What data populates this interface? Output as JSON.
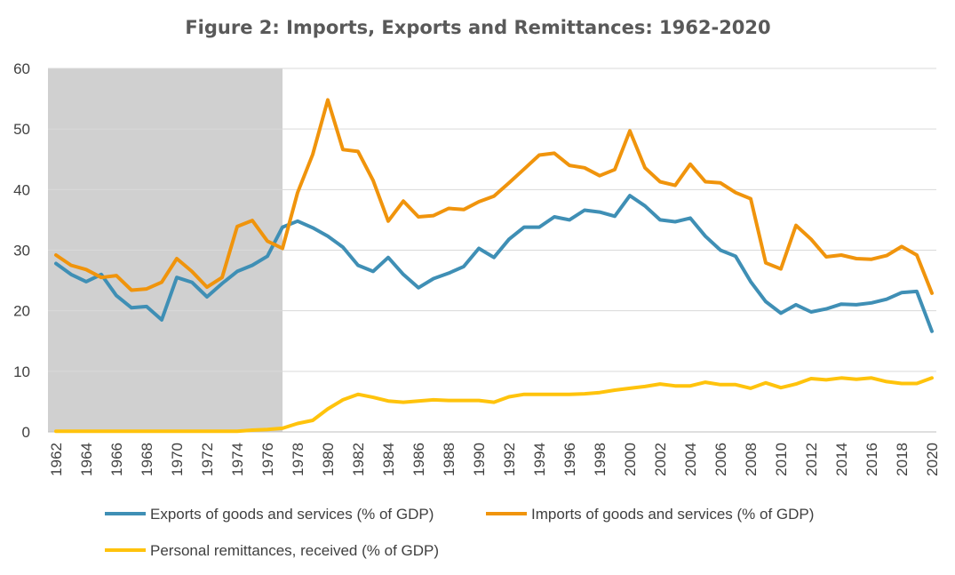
{
  "chart_data": {
    "type": "line",
    "title": "Figure 2: Imports, Exports and Remittances: 1962-2020",
    "xlabel": "",
    "ylabel": "",
    "ylim": [
      0,
      60
    ],
    "yticks": [
      "0",
      "10",
      "20",
      "30",
      "40",
      "50",
      "60"
    ],
    "xlim": [
      1962,
      2020
    ],
    "xticks": [
      "1962",
      "1964",
      "1966",
      "1968",
      "1970",
      "1972",
      "1974",
      "1976",
      "1978",
      "1980",
      "1982",
      "1984",
      "1986",
      "1988",
      "1990",
      "1992",
      "1994",
      "1996",
      "1998",
      "2000",
      "2002",
      "2004",
      "2006",
      "2008",
      "2010",
      "2012",
      "2014",
      "2016",
      "2018",
      "2020"
    ],
    "grid": true,
    "legend_position": "bottom",
    "shaded_region": {
      "from": 1962,
      "to": 1977,
      "color": "#d0d0d0"
    },
    "x": [
      1962,
      1963,
      1964,
      1965,
      1966,
      1967,
      1968,
      1969,
      1970,
      1971,
      1972,
      1973,
      1974,
      1975,
      1976,
      1977,
      1978,
      1979,
      1980,
      1981,
      1982,
      1983,
      1984,
      1985,
      1986,
      1987,
      1988,
      1989,
      1990,
      1991,
      1992,
      1993,
      1994,
      1995,
      1996,
      1997,
      1998,
      1999,
      2000,
      2001,
      2002,
      2003,
      2004,
      2005,
      2006,
      2007,
      2008,
      2009,
      2010,
      2011,
      2012,
      2013,
      2014,
      2015,
      2016,
      2017,
      2018,
      2019,
      2020
    ],
    "series": [
      {
        "name": "Exports of goods and services (% of GDP)",
        "color": "#3f8fb5",
        "values": [
          27.8,
          26.0,
          24.8,
          26.0,
          22.5,
          20.5,
          20.7,
          18.5,
          25.5,
          24.7,
          22.3,
          24.5,
          26.5,
          27.5,
          29.0,
          33.8,
          34.8,
          33.7,
          32.3,
          30.5,
          27.5,
          26.5,
          28.8,
          26.0,
          23.8,
          25.3,
          26.2,
          27.3,
          30.3,
          28.8,
          31.8,
          33.8,
          33.8,
          35.5,
          35.0,
          36.6,
          36.3,
          35.6,
          39.0,
          37.3,
          35.0,
          34.7,
          35.3,
          32.3,
          30.0,
          29.0,
          24.8,
          21.5,
          19.6,
          21.0,
          19.8,
          20.3,
          21.1,
          21.0,
          21.3,
          21.9,
          23.0,
          23.2,
          16.6
        ]
      },
      {
        "name": "Imports of goods and services (% of GDP)",
        "color": "#f0940c",
        "values": [
          29.2,
          27.5,
          26.8,
          25.5,
          25.8,
          23.4,
          23.6,
          24.7,
          28.6,
          26.5,
          23.9,
          25.5,
          33.9,
          34.9,
          31.5,
          30.3,
          39.5,
          45.8,
          54.8,
          46.6,
          46.3,
          41.5,
          34.8,
          38.1,
          35.5,
          35.7,
          36.9,
          36.7,
          38.0,
          38.9,
          41.1,
          43.4,
          45.7,
          46.0,
          44.0,
          43.6,
          42.3,
          43.3,
          49.7,
          43.6,
          41.3,
          40.7,
          44.2,
          41.3,
          41.1,
          39.5,
          38.5,
          27.9,
          26.9,
          34.1,
          31.8,
          28.9,
          29.2,
          28.6,
          28.5,
          29.1,
          30.6,
          29.2,
          22.9
        ]
      },
      {
        "name": "Personal remittances, received (% of GDP)",
        "color": "#ffc30c",
        "values": [
          0.1,
          0.1,
          0.1,
          0.1,
          0.1,
          0.1,
          0.1,
          0.1,
          0.1,
          0.1,
          0.1,
          0.1,
          0.1,
          0.3,
          0.4,
          0.6,
          1.4,
          1.9,
          3.8,
          5.3,
          6.2,
          5.7,
          5.1,
          4.9,
          5.1,
          5.3,
          5.2,
          5.2,
          5.2,
          4.9,
          5.8,
          6.2,
          6.2,
          6.2,
          6.2,
          6.3,
          6.5,
          6.9,
          7.2,
          7.5,
          7.9,
          7.6,
          7.6,
          8.2,
          7.8,
          7.8,
          7.2,
          8.1,
          7.3,
          7.9,
          8.8,
          8.6,
          8.9,
          8.7,
          8.9,
          8.3,
          8.0,
          8.0,
          8.9
        ]
      }
    ]
  }
}
